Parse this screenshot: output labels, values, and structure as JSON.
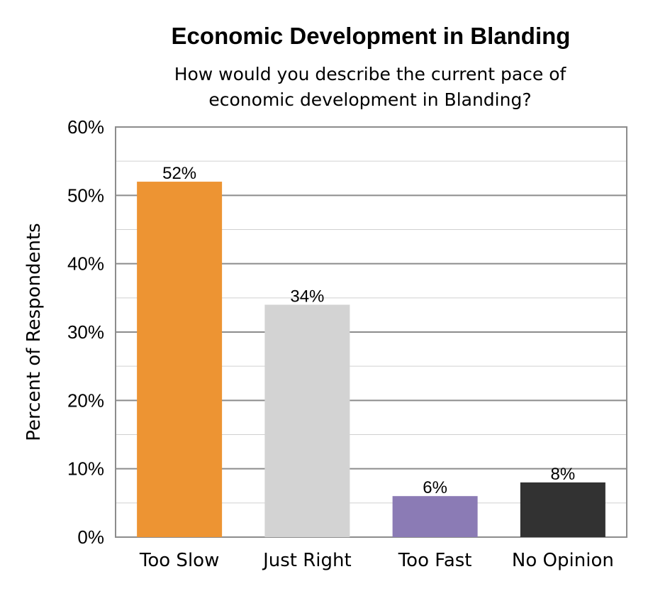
{
  "chart_data": {
    "type": "bar",
    "title": "Economic Development in Blanding",
    "subtitle_lines": [
      "How would you describe the current pace of",
      "economic development in Blanding?"
    ],
    "xlabel": "",
    "ylabel": "Percent of Respondents",
    "categories": [
      "Too Slow",
      "Just Right",
      "Too Fast",
      "No Opinion"
    ],
    "values": [
      52,
      34,
      6,
      8
    ],
    "data_labels": [
      "52%",
      "34%",
      "6%",
      "8%"
    ],
    "colors": [
      "#ED9433",
      "#D3D3D3",
      "#8B7BB5",
      "#323232"
    ],
    "ylim": [
      0,
      60
    ],
    "yticks": [
      0,
      10,
      20,
      30,
      40,
      50,
      60
    ],
    "ytick_labels": [
      "0%",
      "10%",
      "20%",
      "30%",
      "40%",
      "50%",
      "60%"
    ],
    "grid": true,
    "legend": "none"
  }
}
